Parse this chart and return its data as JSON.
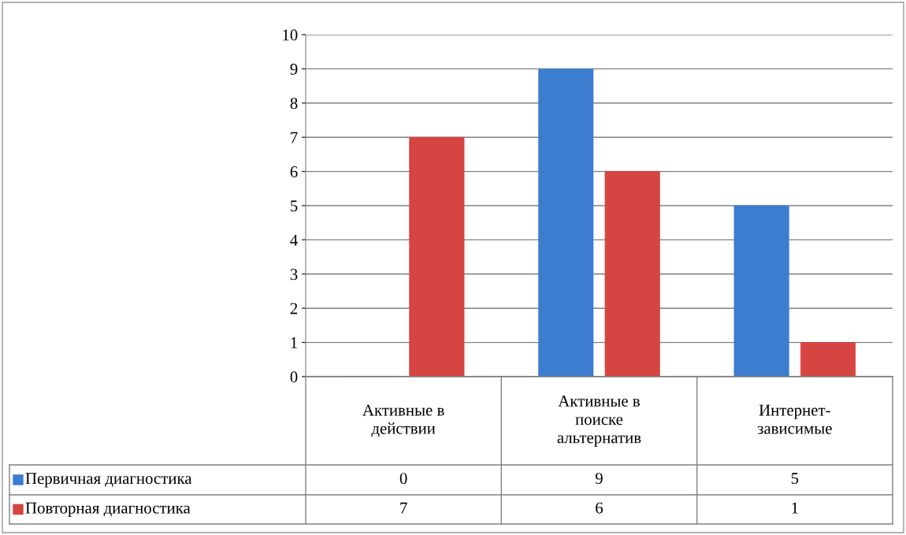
{
  "chart_data": {
    "type": "bar",
    "categories": [
      "Активные в\nдействии",
      "Активные в\nпоиске\nальтернатив",
      "Интернет-\nзависимые"
    ],
    "series": [
      {
        "name": "Первичная диагностика",
        "color": "#3c7dd0",
        "values": [
          0,
          9,
          5
        ]
      },
      {
        "name": "Повторная диагностика",
        "color": "#d64541",
        "values": [
          7,
          6,
          1
        ]
      }
    ],
    "ylim": [
      0,
      10
    ],
    "yticks": [
      0,
      1,
      2,
      3,
      4,
      5,
      6,
      7,
      8,
      9,
      10
    ],
    "grid": "y",
    "legend": "bottom",
    "data_labels": true
  }
}
